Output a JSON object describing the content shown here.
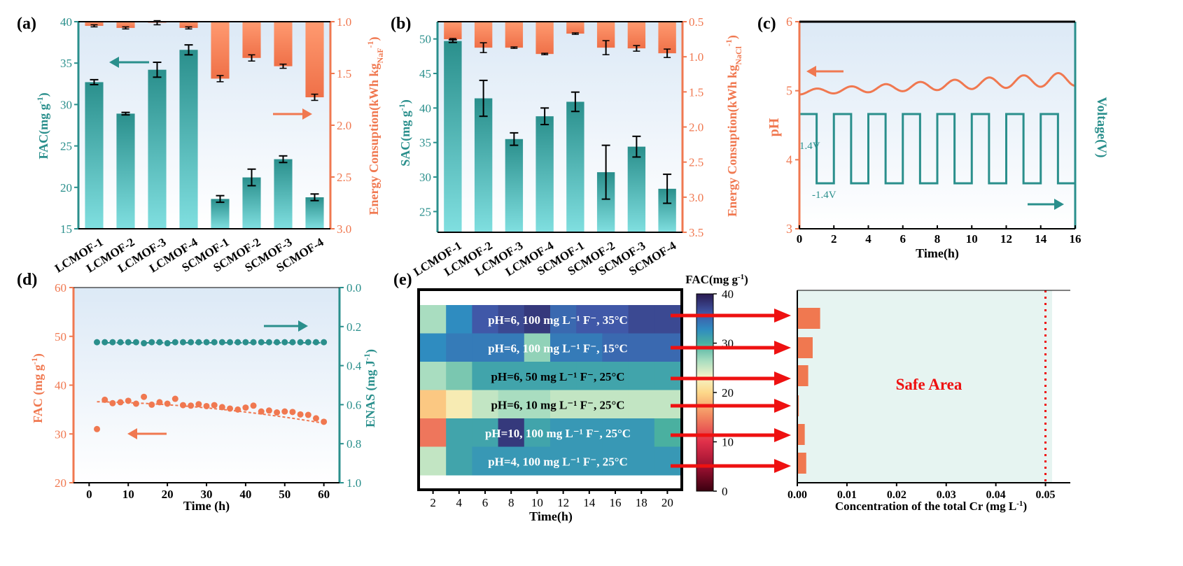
{
  "colors": {
    "teal": "#2a8f8c",
    "orange": "#f07850",
    "red": "#ee1111",
    "safe": "#e6f4f1",
    "bg_top": "#e3eef8",
    "bg_bottom": "#ffffff"
  },
  "chart_data": [
    {
      "panel": "(a)",
      "type": "bar",
      "categories": [
        "LCMOF-1",
        "LCMOF-2",
        "LCMOF-3",
        "LCMOF-4",
        "SCMOF-1",
        "SCMOF-2",
        "SCMOF-3",
        "SCMOF-4"
      ],
      "left_axis": {
        "label": "FAC(mg g-1)",
        "ylim": [
          15,
          40
        ],
        "ticks": [
          "15",
          "20",
          "25",
          "30",
          "35",
          "40"
        ]
      },
      "right_axis": {
        "label": "Energy Consuption(kWh kgNaF-1)",
        "ylim": [
          1.0,
          3.0
        ],
        "ticks": [
          "1.0",
          "1.5",
          "2.0",
          "2.5",
          "3.0"
        ],
        "inverted": true
      },
      "series": [
        {
          "name": "FAC",
          "values": [
            32.7,
            28.9,
            34.2,
            36.6,
            18.6,
            21.2,
            23.4,
            18.8
          ],
          "errors": [
            0.3,
            0.15,
            0.9,
            0.6,
            0.4,
            1.0,
            0.4,
            0.4
          ]
        },
        {
          "name": "Energy Consumption",
          "values": [
            1.04,
            1.06,
            1.01,
            1.06,
            1.55,
            1.35,
            1.43,
            1.73
          ],
          "errors": [
            0.01,
            0.01,
            0.02,
            0.01,
            0.03,
            0.03,
            0.02,
            0.03
          ]
        }
      ]
    },
    {
      "panel": "(b)",
      "type": "bar",
      "categories": [
        "LCMOF-1",
        "LCMOF-2",
        "LCMOF-3",
        "LCMOF-4",
        "SCMOF-1",
        "SCMOF-2",
        "SCMOF-3",
        "SCMOF-4"
      ],
      "left_axis": {
        "label": "SAC(mg g-1)",
        "ylim": [
          22,
          52.5
        ],
        "ticks": [
          "25",
          "30",
          "35",
          "40",
          "45",
          "50"
        ]
      },
      "right_axis": {
        "label": "Energy Consuption(kWh kgNaCl-1)",
        "ylim": [
          0.5,
          3.5
        ],
        "ticks": [
          "0.5",
          "1.0",
          "1.5",
          "2.0",
          "2.5",
          "3.0",
          "3.5"
        ],
        "inverted": true
      },
      "series": [
        {
          "name": "SAC",
          "values": [
            49.7,
            41.4,
            35.5,
            38.8,
            40.9,
            30.7,
            34.4,
            28.3
          ],
          "errors": [
            0.2,
            2.6,
            0.9,
            1.2,
            1.4,
            3.9,
            1.5,
            2.1
          ]
        },
        {
          "name": "Energy Consumption",
          "values": [
            0.75,
            0.87,
            0.87,
            0.96,
            0.67,
            0.87,
            0.88,
            0.95
          ],
          "errors": [
            0.01,
            0.07,
            0.01,
            0.01,
            0.01,
            0.1,
            0.04,
            0.06
          ]
        }
      ]
    },
    {
      "panel": "(c)",
      "type": "line",
      "xlabel": "Time(h)",
      "xlim": [
        0,
        16
      ],
      "x_ticks": [
        "0",
        "2",
        "4",
        "6",
        "8",
        "10",
        "12",
        "14",
        "16"
      ],
      "left_axis": {
        "label": "pH",
        "ylim": [
          3,
          6
        ],
        "ticks": [
          "3",
          "4",
          "5",
          "6"
        ]
      },
      "right_axis": {
        "label": "Voltage(V)"
      },
      "annotations": [
        "1.4V",
        "-1.4V"
      ],
      "series": [
        {
          "name": "pH",
          "x": [
            0,
            1,
            2,
            3,
            4,
            5,
            6,
            7,
            8,
            9,
            10,
            11,
            12,
            13,
            14,
            15,
            16
          ],
          "values": [
            4.98,
            5.03,
            4.96,
            5.05,
            4.93,
            5.08,
            4.96,
            5.06,
            4.98,
            5.1,
            4.99,
            5.12,
            5.02,
            5.14,
            5.05,
            5.18,
            5.12
          ]
        },
        {
          "name": "Voltage",
          "period_h": 2,
          "high": 1.4,
          "low": -1.4
        }
      ]
    },
    {
      "panel": "(d)",
      "type": "scatter",
      "xlabel": "Time (h)",
      "xlim": [
        -4,
        64
      ],
      "x_ticks": [
        "0",
        "10",
        "20",
        "30",
        "40",
        "50",
        "60"
      ],
      "left_axis": {
        "label": "FAC (mg g-1)",
        "ylim": [
          20,
          60
        ],
        "ticks": [
          "20",
          "30",
          "40",
          "50",
          "60"
        ]
      },
      "right_axis": {
        "label": "ENAS (mg J-1)",
        "ylim": [
          0,
          1.0
        ],
        "ticks": [
          "0.0",
          "0.2",
          "0.4",
          "0.6",
          "0.8",
          "1.0"
        ],
        "inverted": true
      },
      "series": [
        {
          "name": "FAC",
          "x": [
            2,
            4,
            6,
            8,
            10,
            12,
            14,
            16,
            18,
            20,
            22,
            24,
            26,
            28,
            30,
            32,
            34,
            36,
            38,
            40,
            42,
            44,
            46,
            48,
            50,
            52,
            54,
            56,
            58,
            60
          ],
          "values": [
            31.0,
            37.0,
            36.3,
            36.5,
            36.8,
            36.2,
            37.6,
            36.0,
            36.5,
            36.2,
            37.2,
            35.9,
            35.8,
            36.1,
            35.7,
            35.9,
            35.5,
            35.2,
            35.0,
            35.4,
            35.8,
            34.6,
            34.8,
            34.4,
            34.6,
            34.5,
            34.0,
            33.9,
            33.2,
            32.5
          ]
        },
        {
          "name": "ENAS",
          "x": [
            2,
            4,
            6,
            8,
            10,
            12,
            14,
            16,
            18,
            20,
            22,
            24,
            26,
            28,
            30,
            32,
            34,
            36,
            38,
            40,
            42,
            44,
            46,
            48,
            50,
            52,
            54,
            56,
            58,
            60
          ],
          "values": [
            0.28,
            0.28,
            0.28,
            0.28,
            0.28,
            0.28,
            0.285,
            0.28,
            0.28,
            0.285,
            0.28,
            0.28,
            0.28,
            0.28,
            0.28,
            0.28,
            0.28,
            0.28,
            0.28,
            0.28,
            0.28,
            0.28,
            0.28,
            0.28,
            0.28,
            0.28,
            0.28,
            0.28,
            0.28,
            0.28
          ]
        }
      ],
      "fit_line": "dashed orange"
    },
    {
      "panel": "(e)",
      "type": "heatmap",
      "xlabel": "Time(h)",
      "x_ticks": [
        "2",
        "4",
        "6",
        "8",
        "10",
        "12",
        "14",
        "16",
        "18",
        "20"
      ],
      "colorbar": {
        "label": "FAC(mg g-1)",
        "ticks": [
          "0",
          "10",
          "20",
          "30",
          "40"
        ],
        "range": [
          0,
          40
        ]
      },
      "rows": [
        {
          "label": "pH=6, 100 mg L-1 F-, 35°C",
          "values": [
            26,
            33,
            36,
            37,
            38,
            35,
            36,
            36,
            37,
            37
          ]
        },
        {
          "label": "pH=6, 100 mg L-1 F-, 15°C",
          "values": [
            33,
            34,
            34,
            34,
            27,
            34,
            34,
            35,
            35,
            35
          ]
        },
        {
          "label": "pH=6, 50 mg L-1 F-, 25°C",
          "values": [
            26,
            28,
            31,
            31,
            31,
            31,
            31,
            31,
            31,
            31
          ]
        },
        {
          "label": "pH=6, 10 mg L-1 F-, 25°C",
          "values": [
            19,
            22,
            25,
            26,
            26,
            25,
            25,
            25,
            25,
            25
          ]
        },
        {
          "label": "pH=10, 100 mg L-1 F-, 25°C",
          "values": [
            14,
            31,
            31,
            38,
            31,
            32,
            32,
            32,
            32,
            30
          ]
        },
        {
          "label": "pH=4, 100 mg L-1 F-, 25°C",
          "values": [
            25,
            31,
            32,
            32,
            32,
            32,
            32,
            32,
            32,
            32
          ]
        }
      ]
    },
    {
      "panel": "(e)-right",
      "type": "bar",
      "orientation": "horizontal",
      "xlabel": "Concentration of the total Cr (mg L-1)",
      "xlim": [
        0,
        0.055
      ],
      "x_ticks": [
        "0.00",
        "0.01",
        "0.02",
        "0.03",
        "0.04",
        "0.05"
      ],
      "threshold": 0.05,
      "annotation": "Safe Area",
      "values": [
        0.0046,
        0.0031,
        0.0022,
        0.0003,
        0.0015,
        0.0018
      ]
    }
  ]
}
